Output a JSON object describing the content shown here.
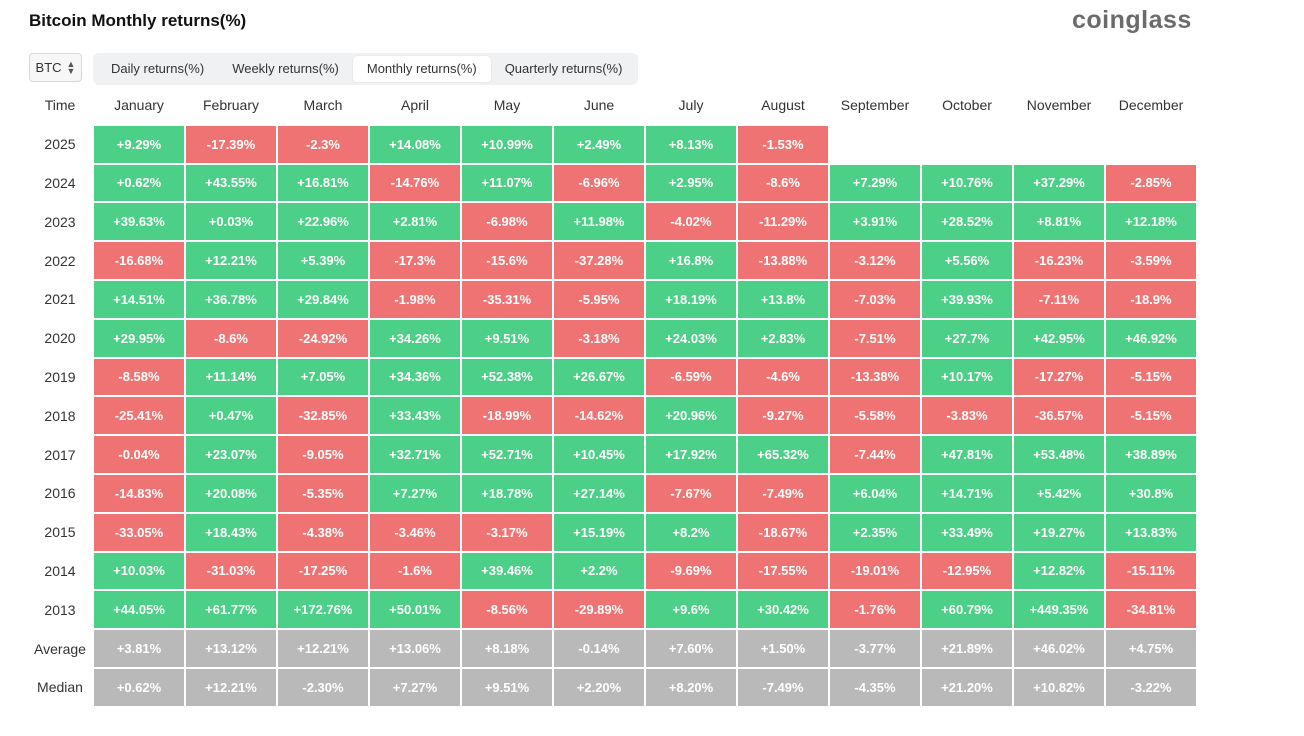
{
  "title": "Bitcoin Monthly returns(%)",
  "brand": "coinglass",
  "selector": {
    "value": "BTC"
  },
  "tabs": [
    {
      "label": "Daily returns(%)",
      "active": false
    },
    {
      "label": "Weekly returns(%)",
      "active": false
    },
    {
      "label": "Monthly returns(%)",
      "active": true
    },
    {
      "label": "Quarterly returns(%)",
      "active": false
    }
  ],
  "colors": {
    "positive": "#4ccf86",
    "negative": "#f07373",
    "stat": "#b9b9b9"
  },
  "table": {
    "header": [
      "Time",
      "January",
      "February",
      "March",
      "April",
      "May",
      "June",
      "July",
      "August",
      "September",
      "October",
      "November",
      "December"
    ],
    "rows": [
      {
        "label": "2025",
        "values": [
          "+9.29%",
          "-17.39%",
          "-2.3%",
          "+14.08%",
          "+10.99%",
          "+2.49%",
          "+8.13%",
          "-1.53%",
          "",
          "",
          "",
          ""
        ]
      },
      {
        "label": "2024",
        "values": [
          "+0.62%",
          "+43.55%",
          "+16.81%",
          "-14.76%",
          "+11.07%",
          "-6.96%",
          "+2.95%",
          "-8.6%",
          "+7.29%",
          "+10.76%",
          "+37.29%",
          "-2.85%"
        ]
      },
      {
        "label": "2023",
        "values": [
          "+39.63%",
          "+0.03%",
          "+22.96%",
          "+2.81%",
          "-6.98%",
          "+11.98%",
          "-4.02%",
          "-11.29%",
          "+3.91%",
          "+28.52%",
          "+8.81%",
          "+12.18%"
        ]
      },
      {
        "label": "2022",
        "values": [
          "-16.68%",
          "+12.21%",
          "+5.39%",
          "-17.3%",
          "-15.6%",
          "-37.28%",
          "+16.8%",
          "-13.88%",
          "-3.12%",
          "+5.56%",
          "-16.23%",
          "-3.59%"
        ]
      },
      {
        "label": "2021",
        "values": [
          "+14.51%",
          "+36.78%",
          "+29.84%",
          "-1.98%",
          "-35.31%",
          "-5.95%",
          "+18.19%",
          "+13.8%",
          "-7.03%",
          "+39.93%",
          "-7.11%",
          "-18.9%"
        ]
      },
      {
        "label": "2020",
        "values": [
          "+29.95%",
          "-8.6%",
          "-24.92%",
          "+34.26%",
          "+9.51%",
          "-3.18%",
          "+24.03%",
          "+2.83%",
          "-7.51%",
          "+27.7%",
          "+42.95%",
          "+46.92%"
        ]
      },
      {
        "label": "2019",
        "values": [
          "-8.58%",
          "+11.14%",
          "+7.05%",
          "+34.36%",
          "+52.38%",
          "+26.67%",
          "-6.59%",
          "-4.6%",
          "-13.38%",
          "+10.17%",
          "-17.27%",
          "-5.15%"
        ]
      },
      {
        "label": "2018",
        "values": [
          "-25.41%",
          "+0.47%",
          "-32.85%",
          "+33.43%",
          "-18.99%",
          "-14.62%",
          "+20.96%",
          "-9.27%",
          "-5.58%",
          "-3.83%",
          "-36.57%",
          "-5.15%"
        ]
      },
      {
        "label": "2017",
        "values": [
          "-0.04%",
          "+23.07%",
          "-9.05%",
          "+32.71%",
          "+52.71%",
          "+10.45%",
          "+17.92%",
          "+65.32%",
          "-7.44%",
          "+47.81%",
          "+53.48%",
          "+38.89%"
        ]
      },
      {
        "label": "2016",
        "values": [
          "-14.83%",
          "+20.08%",
          "-5.35%",
          "+7.27%",
          "+18.78%",
          "+27.14%",
          "-7.67%",
          "-7.49%",
          "+6.04%",
          "+14.71%",
          "+5.42%",
          "+30.8%"
        ]
      },
      {
        "label": "2015",
        "values": [
          "-33.05%",
          "+18.43%",
          "-4.38%",
          "-3.46%",
          "-3.17%",
          "+15.19%",
          "+8.2%",
          "-18.67%",
          "+2.35%",
          "+33.49%",
          "+19.27%",
          "+13.83%"
        ]
      },
      {
        "label": "2014",
        "values": [
          "+10.03%",
          "-31.03%",
          "-17.25%",
          "-1.6%",
          "+39.46%",
          "+2.2%",
          "-9.69%",
          "-17.55%",
          "-19.01%",
          "-12.95%",
          "+12.82%",
          "-15.11%"
        ]
      },
      {
        "label": "2013",
        "values": [
          "+44.05%",
          "+61.77%",
          "+172.76%",
          "+50.01%",
          "-8.56%",
          "-29.89%",
          "+9.6%",
          "+30.42%",
          "-1.76%",
          "+60.79%",
          "+449.35%",
          "-34.81%"
        ]
      }
    ],
    "stats": [
      {
        "label": "Average",
        "values": [
          "+3.81%",
          "+13.12%",
          "+12.21%",
          "+13.06%",
          "+8.18%",
          "-0.14%",
          "+7.60%",
          "+1.50%",
          "-3.77%",
          "+21.89%",
          "+46.02%",
          "+4.75%"
        ]
      },
      {
        "label": "Median",
        "values": [
          "+0.62%",
          "+12.21%",
          "-2.30%",
          "+7.27%",
          "+9.51%",
          "+2.20%",
          "+8.20%",
          "-7.49%",
          "-4.35%",
          "+21.20%",
          "+10.82%",
          "-3.22%"
        ]
      }
    ]
  }
}
